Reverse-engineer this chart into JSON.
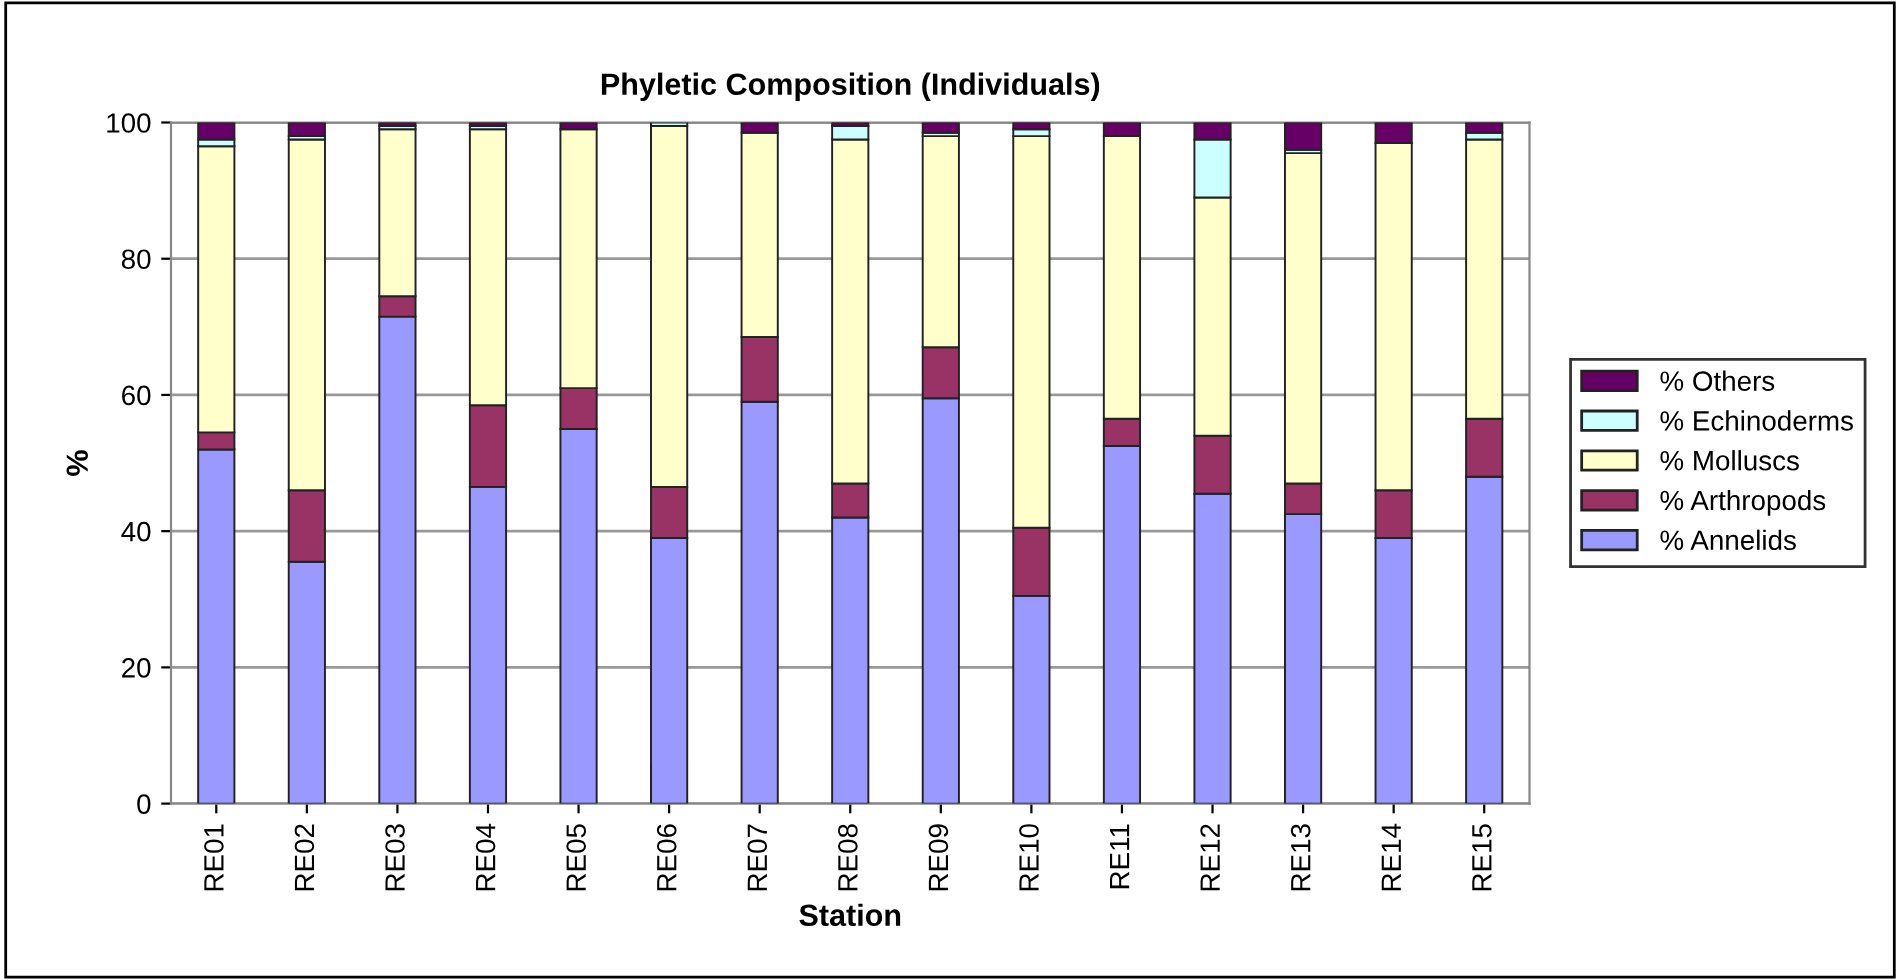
{
  "chart_data": {
    "type": "bar",
    "stacked": true,
    "title": "Phyletic Composition (Individuals)",
    "xlabel": "Station",
    "ylabel": "%",
    "categories": [
      "RE01",
      "RE02",
      "RE03",
      "RE04",
      "RE05",
      "RE06",
      "RE07",
      "RE08",
      "RE09",
      "RE10",
      "RE11",
      "RE12",
      "RE13",
      "RE14",
      "RE15"
    ],
    "series": [
      {
        "name": "% Annelids",
        "color": "#9999ff",
        "values": [
          52,
          35.5,
          71.5,
          46.5,
          55,
          39,
          59,
          42,
          59.5,
          30.5,
          52.5,
          45.5,
          42.5,
          39,
          48
        ]
      },
      {
        "name": "% Arthropods",
        "color": "#993366",
        "values": [
          2.5,
          10.5,
          3,
          12,
          6,
          7.5,
          9.5,
          5,
          7.5,
          10,
          4,
          8.5,
          4.5,
          7,
          8.5
        ]
      },
      {
        "name": "% Molluscs",
        "color": "#ffffcc",
        "values": [
          42,
          51.5,
          24.5,
          40.5,
          38,
          53,
          30,
          50.5,
          31,
          57.5,
          41.5,
          35,
          48.5,
          51,
          41
        ]
      },
      {
        "name": "% Echinoderms",
        "color": "#ccffff",
        "values": [
          1,
          0.5,
          0.5,
          0.5,
          0,
          0.5,
          0,
          2,
          0.5,
          1,
          0,
          8.5,
          0.5,
          0,
          1
        ]
      },
      {
        "name": "% Others",
        "color": "#660066",
        "values": [
          2.5,
          2,
          0.5,
          0.5,
          1,
          0,
          1.5,
          0.5,
          1.5,
          1,
          2,
          2.5,
          4,
          3,
          1.5
        ]
      }
    ],
    "ylim": [
      0,
      100
    ],
    "yticks": [
      0,
      20,
      40,
      60,
      80,
      100
    ],
    "grid": "y",
    "legend": "right"
  }
}
